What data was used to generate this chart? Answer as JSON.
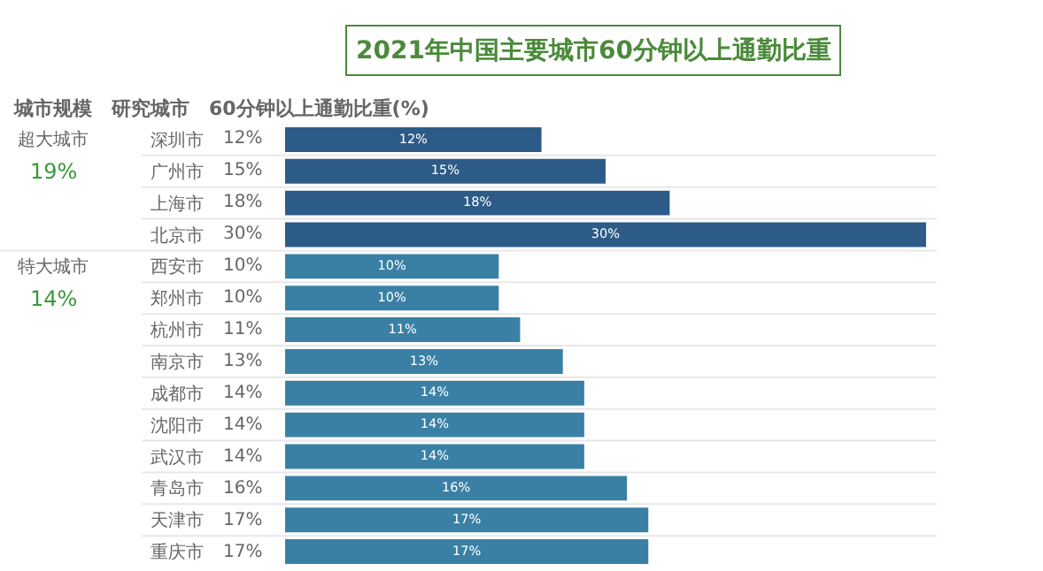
{
  "chart_data": {
    "type": "bar",
    "orientation": "horizontal",
    "title": "2021年中国主要城市60分钟以上通勤比重",
    "xlabel": "60分钟以上通勤比重(%)",
    "categories": [
      "深圳市",
      "广州市",
      "上海市",
      "北京市",
      "西安市",
      "郑州市",
      "杭州市",
      "南京市",
      "成都市",
      "沈阳市",
      "武汉市",
      "青岛市",
      "天津市",
      "重庆市"
    ],
    "values": [
      12,
      15,
      18,
      30,
      10,
      10,
      11,
      13,
      14,
      14,
      14,
      16,
      17,
      17
    ],
    "value_labels": [
      "12%",
      "15%",
      "18%",
      "30%",
      "10%",
      "10%",
      "11%",
      "13%",
      "14%",
      "14%",
      "14%",
      "16%",
      "17%",
      "17%"
    ],
    "colors": [
      "#2d5b87",
      "#2d5b87",
      "#2d5b87",
      "#2d5b87",
      "#3a80a5",
      "#3a80a5",
      "#3a80a5",
      "#3a80a5",
      "#3a80a5",
      "#3a80a5",
      "#3a80a5",
      "#3a80a5",
      "#3a80a5",
      "#3a80a5"
    ],
    "xlim": [
      0,
      30.5
    ],
    "tick_labels": "y",
    "legend": false,
    "annotations": [
      "城市规模",
      "研究城市",
      "超大城市",
      "19%",
      "特大城市",
      "14%"
    ]
  }
}
